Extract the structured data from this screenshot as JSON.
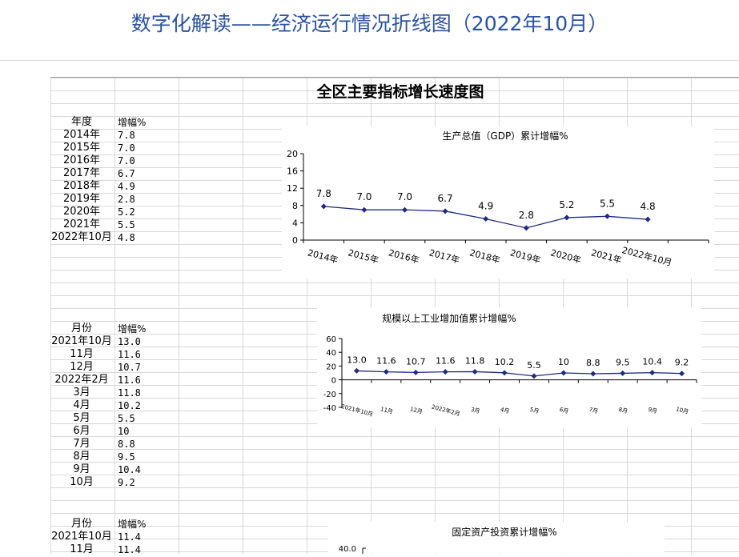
{
  "header": {
    "title": "数字化解读——经济运行情况折线图（2022年10月）"
  },
  "sheet": {
    "title": "全区主要指标增长速度图"
  },
  "table_gdp": {
    "headers": [
      "年度",
      "增幅%"
    ],
    "rows": [
      [
        "2014年",
        "7.8"
      ],
      [
        "2015年",
        "7.0"
      ],
      [
        "2016年",
        "7.0"
      ],
      [
        "2017年",
        "6.7"
      ],
      [
        "2018年",
        "4.9"
      ],
      [
        "2019年",
        "2.8"
      ],
      [
        "2020年",
        "5.2"
      ],
      [
        "2021年",
        "5.5"
      ],
      [
        "2022年10月",
        "4.8"
      ]
    ]
  },
  "table_ind": {
    "headers": [
      "月份",
      "增幅%"
    ],
    "rows": [
      [
        "2021年10月",
        "13.0"
      ],
      [
        "11月",
        "11.6"
      ],
      [
        "12月",
        "10.7"
      ],
      [
        "2022年2月",
        "11.6"
      ],
      [
        "3月",
        "11.8"
      ],
      [
        "4月",
        "10.2"
      ],
      [
        "5月",
        "5.5"
      ],
      [
        "6月",
        "10"
      ],
      [
        "7月",
        "8.8"
      ],
      [
        "8月",
        "9.5"
      ],
      [
        "9月",
        "10.4"
      ],
      [
        "10月",
        "9.2"
      ]
    ]
  },
  "table_inv": {
    "headers": [
      "月份",
      "增幅%"
    ],
    "rows": [
      [
        "2021年10月",
        "11.4"
      ],
      [
        "11月",
        "11.4"
      ]
    ]
  },
  "chart_data": [
    {
      "type": "line",
      "title": "生产总值（GDP）累计增幅%",
      "categories": [
        "2014年",
        "2015年",
        "2016年",
        "2017年",
        "2018年",
        "2019年",
        "2020年",
        "2021年",
        "2022年10月"
      ],
      "values": [
        7.8,
        7.0,
        7.0,
        6.7,
        4.9,
        2.8,
        5.2,
        5.5,
        4.8
      ],
      "data_labels": [
        "7.8",
        "7.0",
        "7.0",
        "6.7",
        "4.9",
        "2.8",
        "5.2",
        "5.5",
        "4.8"
      ],
      "ylim": [
        0,
        20
      ],
      "yticks": [
        "0",
        "4",
        "8",
        "12",
        "16",
        "20"
      ],
      "color": "#1f2a80"
    },
    {
      "type": "line",
      "title": "规模以上工业增加值累计增幅%",
      "categories": [
        "2021年10月",
        "11月",
        "12月",
        "2022年2月",
        "3月",
        "4月",
        "5月",
        "6月",
        "7月",
        "8月",
        "9月",
        "10月"
      ],
      "values": [
        13.0,
        11.6,
        10.7,
        11.6,
        11.8,
        10.2,
        5.5,
        10,
        8.8,
        9.5,
        10.4,
        9.2
      ],
      "data_labels": [
        "13.0",
        "11.6",
        "10.7",
        "11.6",
        "11.8",
        "10.2",
        "5.5",
        "10",
        "8.8",
        "9.5",
        "10.4",
        "9.2"
      ],
      "ylim": [
        -40,
        60
      ],
      "yticks": [
        "-40",
        "-20",
        "0",
        "20",
        "40",
        "60"
      ],
      "color": "#1f2a80"
    },
    {
      "type": "line",
      "title": "固定资产投资累计增幅%",
      "yticks_visible": [
        "40.0"
      ]
    }
  ]
}
